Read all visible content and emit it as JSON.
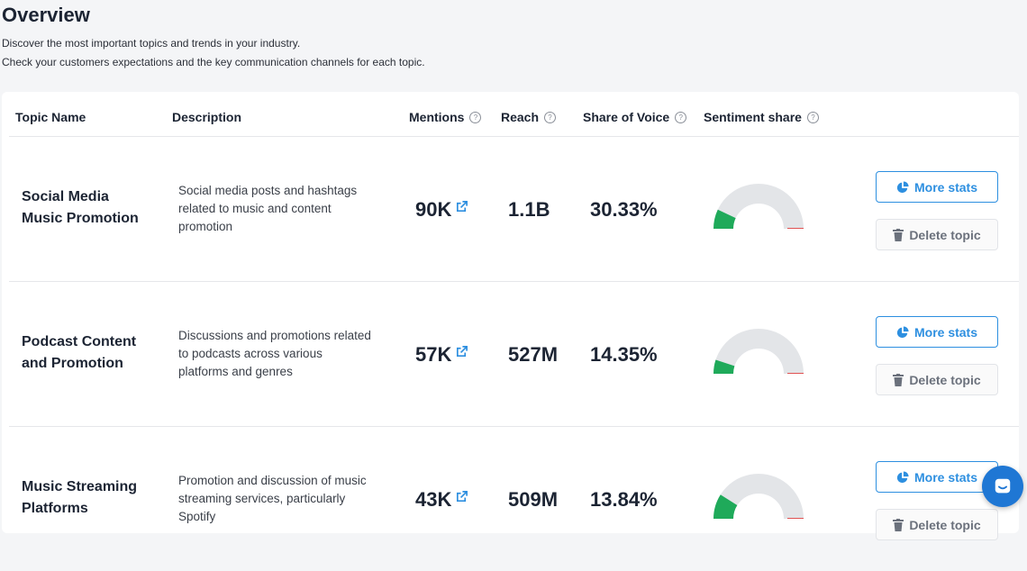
{
  "header": {
    "title": "Overview",
    "subtitle_1": "Discover the most important topics and trends in your industry.",
    "subtitle_2": "Check your customers expectations and the key communication channels for each topic."
  },
  "table": {
    "columns": {
      "topic": "Topic Name",
      "description": "Description",
      "mentions": "Mentions",
      "reach": "Reach",
      "share": "Share of Voice",
      "sentiment": "Sentiment share"
    },
    "rows": [
      {
        "topic_line1": "Social Media",
        "topic_line2": "Music Promotion",
        "desc_line1": "Social media posts and hashtags",
        "desc_line2": "related to music and content",
        "desc_line3": "promotion",
        "mentions": "90K",
        "reach": "1.1B",
        "share": "30.33%",
        "sentiment": {
          "positive": 0.14,
          "negative": 0.05
        }
      },
      {
        "topic_line1": "Podcast Content",
        "topic_line2": "and Promotion",
        "desc_line1": "Discussions and promotions related",
        "desc_line2": "to podcasts across various",
        "desc_line3": "platforms and genres",
        "mentions": "57K",
        "reach": "527M",
        "share": "14.35%",
        "sentiment": {
          "positive": 0.1,
          "negative": 0.03
        }
      },
      {
        "topic_line1": "Music Streaming",
        "topic_line2": "Platforms",
        "desc_line1": "Promotion and discussion of music",
        "desc_line2": "streaming services, particularly",
        "desc_line3": "Spotify",
        "mentions": "43K",
        "reach": "509M",
        "share": "13.84%",
        "sentiment": {
          "positive": 0.18,
          "negative": 0.06
        }
      }
    ]
  },
  "buttons": {
    "more_stats": "More stats",
    "delete_topic": "Delete topic"
  },
  "colors": {
    "accent": "#2d8fe0",
    "positive": "#1faa5a",
    "negative": "#e05252",
    "neutral": "#e3e5e8"
  },
  "icons": {
    "more_stats": "pie-chart-icon",
    "delete": "trash-icon",
    "mentions_link": "external-link-icon",
    "help": "help-icon",
    "chat": "chat-icon"
  }
}
